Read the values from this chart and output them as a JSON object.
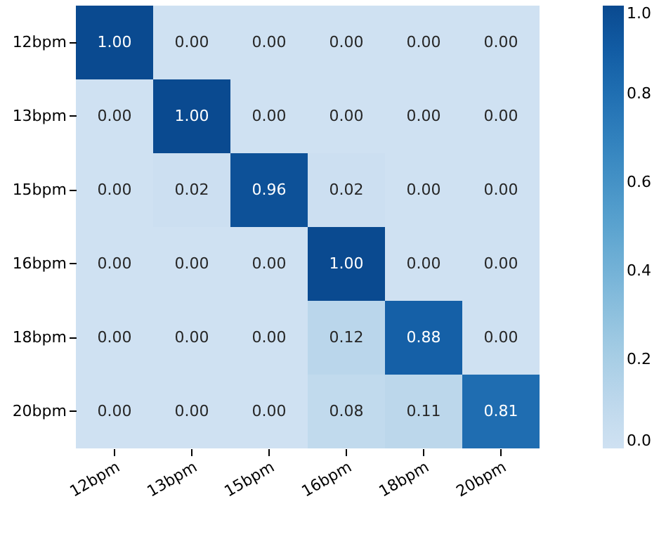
{
  "chart_data": {
    "type": "heatmap",
    "categories": [
      "12bpm",
      "13bpm",
      "15bpm",
      "16bpm",
      "18bpm",
      "20bpm"
    ],
    "y_categories": [
      "12bpm",
      "13bpm",
      "15bpm",
      "16bpm",
      "18bpm",
      "20bpm"
    ],
    "cells": [
      [
        1.0,
        0.0,
        0.0,
        0.0,
        0.0,
        0.0
      ],
      [
        0.0,
        1.0,
        0.0,
        0.0,
        0.0,
        0.0
      ],
      [
        0.0,
        0.02,
        0.96,
        0.02,
        0.0,
        0.0
      ],
      [
        0.0,
        0.0,
        0.0,
        1.0,
        0.0,
        0.0
      ],
      [
        0.0,
        0.0,
        0.0,
        0.12,
        0.88,
        0.0
      ],
      [
        0.0,
        0.0,
        0.0,
        0.08,
        0.11,
        0.81
      ]
    ],
    "cell_labels": [
      [
        "1.00",
        "0.00",
        "0.00",
        "0.00",
        "0.00",
        "0.00"
      ],
      [
        "0.00",
        "1.00",
        "0.00",
        "0.00",
        "0.00",
        "0.00"
      ],
      [
        "0.00",
        "0.02",
        "0.96",
        "0.02",
        "0.00",
        "0.00"
      ],
      [
        "0.00",
        "0.00",
        "0.00",
        "1.00",
        "0.00",
        "0.00"
      ],
      [
        "0.00",
        "0.00",
        "0.00",
        "0.12",
        "0.88",
        "0.00"
      ],
      [
        "0.00",
        "0.00",
        "0.00",
        "0.08",
        "0.11",
        "0.81"
      ]
    ],
    "clim": [
      0,
      1
    ],
    "cticks": [
      {
        "value": 0,
        "label": "0.0"
      },
      {
        "value": 0.2,
        "label": "0.2"
      },
      {
        "value": 0.4,
        "label": "0.4"
      },
      {
        "value": 0.6,
        "label": "0.6"
      },
      {
        "value": 0.8,
        "label": "0.8"
      },
      {
        "value": 1,
        "label": "1.0"
      }
    ]
  }
}
